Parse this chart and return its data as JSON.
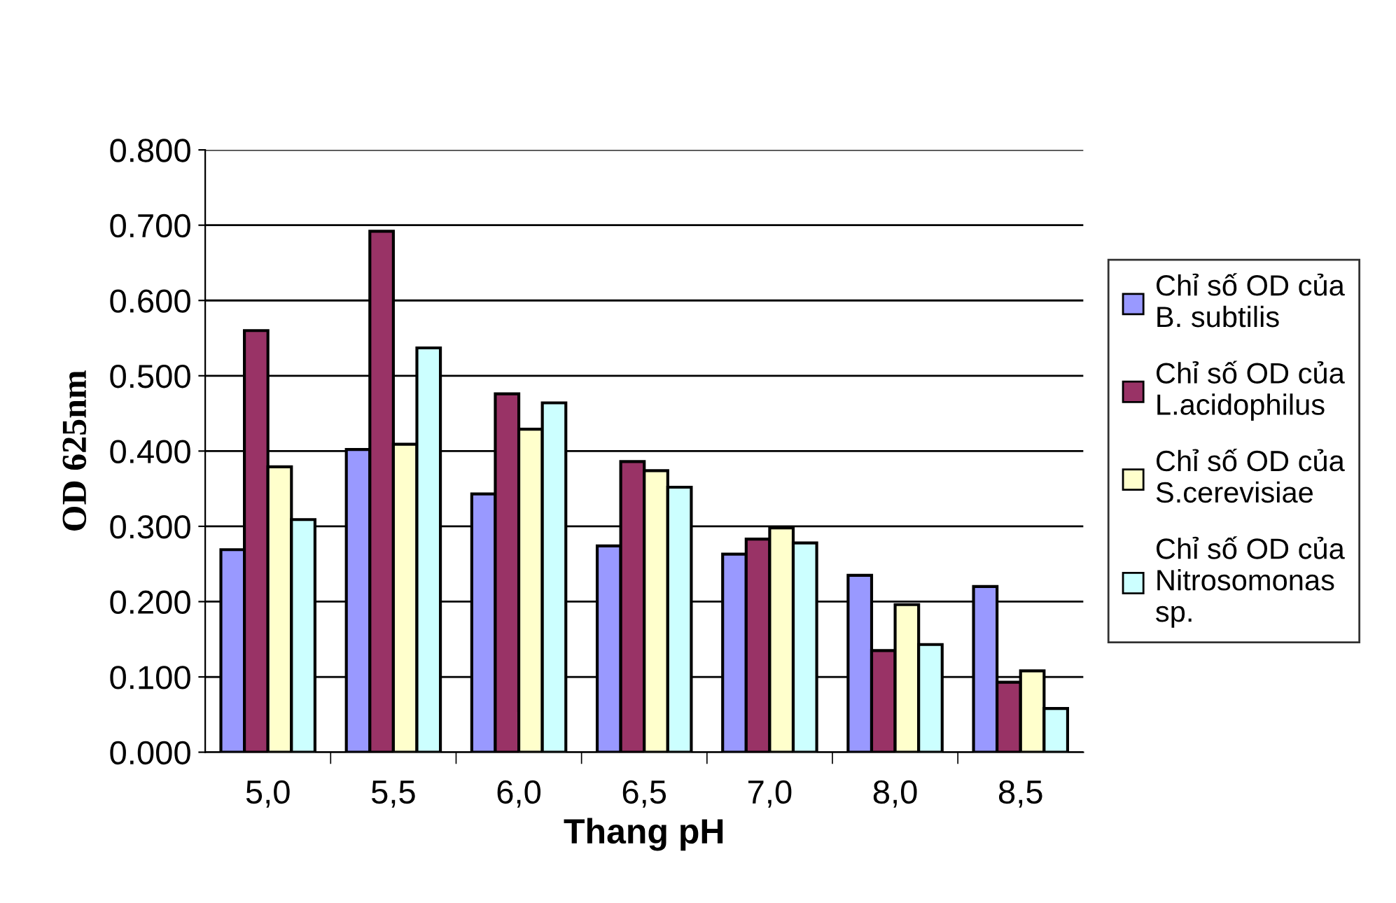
{
  "chart_data": {
    "type": "bar",
    "xlabel": "Thang pH",
    "ylabel": "OD 625nm",
    "categories": [
      "5,0",
      "5,5",
      "6,0",
      "6,5",
      "7,0",
      "8,0",
      "8,5"
    ],
    "series": [
      {
        "name": "Chỉ số OD của\nB. subtilis",
        "color": "#9999ff",
        "values": [
          0.269,
          0.402,
          0.343,
          0.274,
          0.263,
          0.235,
          0.22
        ]
      },
      {
        "name": "Chỉ số OD của\nL.acidophilus",
        "color": "#993366",
        "values": [
          0.56,
          0.692,
          0.476,
          0.386,
          0.283,
          0.135,
          0.093
        ]
      },
      {
        "name": "Chỉ số OD của\nS.cerevisiae",
        "color": "#ffffcc",
        "values": [
          0.379,
          0.409,
          0.429,
          0.374,
          0.298,
          0.196,
          0.108
        ]
      },
      {
        "name": "Chỉ số OD của\nNitrosomonas\nsp.",
        "color": "#ccffff",
        "values": [
          0.309,
          0.537,
          0.464,
          0.352,
          0.278,
          0.143,
          0.058
        ]
      }
    ],
    "ylim": [
      0,
      0.8
    ],
    "yticks": [
      {
        "value": 0,
        "label": "0.000"
      },
      {
        "value": 0.1,
        "label": "0.100"
      },
      {
        "value": 0.2,
        "label": "0.200"
      },
      {
        "value": 0.3,
        "label": "0.300"
      },
      {
        "value": 0.4,
        "label": "0.400"
      },
      {
        "value": 0.5,
        "label": "0.500"
      },
      {
        "value": 0.6,
        "label": "0.600"
      },
      {
        "value": 0.7,
        "label": "0.700"
      },
      {
        "value": 0.8,
        "label": "0.800"
      }
    ],
    "grid": "y",
    "legend": "right"
  }
}
